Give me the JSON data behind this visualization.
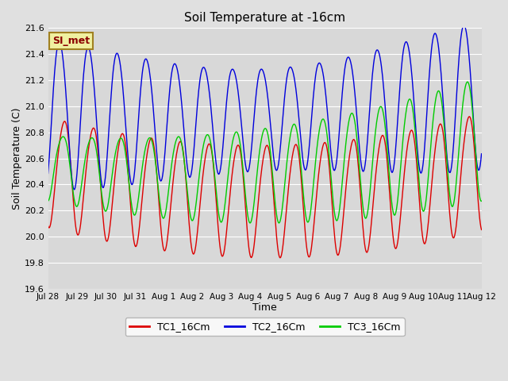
{
  "title": "Soil Temperature at -16cm",
  "xlabel": "Time",
  "ylabel": "Soil Temperature (C)",
  "ylim": [
    19.6,
    21.6
  ],
  "fig_bg": "#e0e0e0",
  "plot_bg": "#d8d8d8",
  "grid_color": "#ffffff",
  "legend_label": "SI_met",
  "x_tick_labels": [
    "Jul 28",
    "Jul 29",
    "Jul 30",
    "Jul 31",
    "Aug 1",
    "Aug 2",
    "Aug 3",
    "Aug 4",
    "Aug 5",
    "Aug 6",
    "Aug 7",
    "Aug 8",
    "Aug 9",
    "Aug 10",
    "Aug 11",
    "Aug 12"
  ],
  "series": {
    "TC1_16Cm": {
      "color": "#dd0000",
      "label": "TC1_16Cm"
    },
    "TC2_16Cm": {
      "color": "#0000dd",
      "label": "TC2_16Cm"
    },
    "TC3_16Cm": {
      "color": "#00cc00",
      "label": "TC3_16Cm"
    }
  },
  "yticks": [
    19.6,
    19.8,
    20.0,
    20.2,
    20.4,
    20.6,
    20.8,
    21.0,
    21.2,
    21.4,
    21.6
  ],
  "n_days": 15,
  "samples_per_day": 48
}
